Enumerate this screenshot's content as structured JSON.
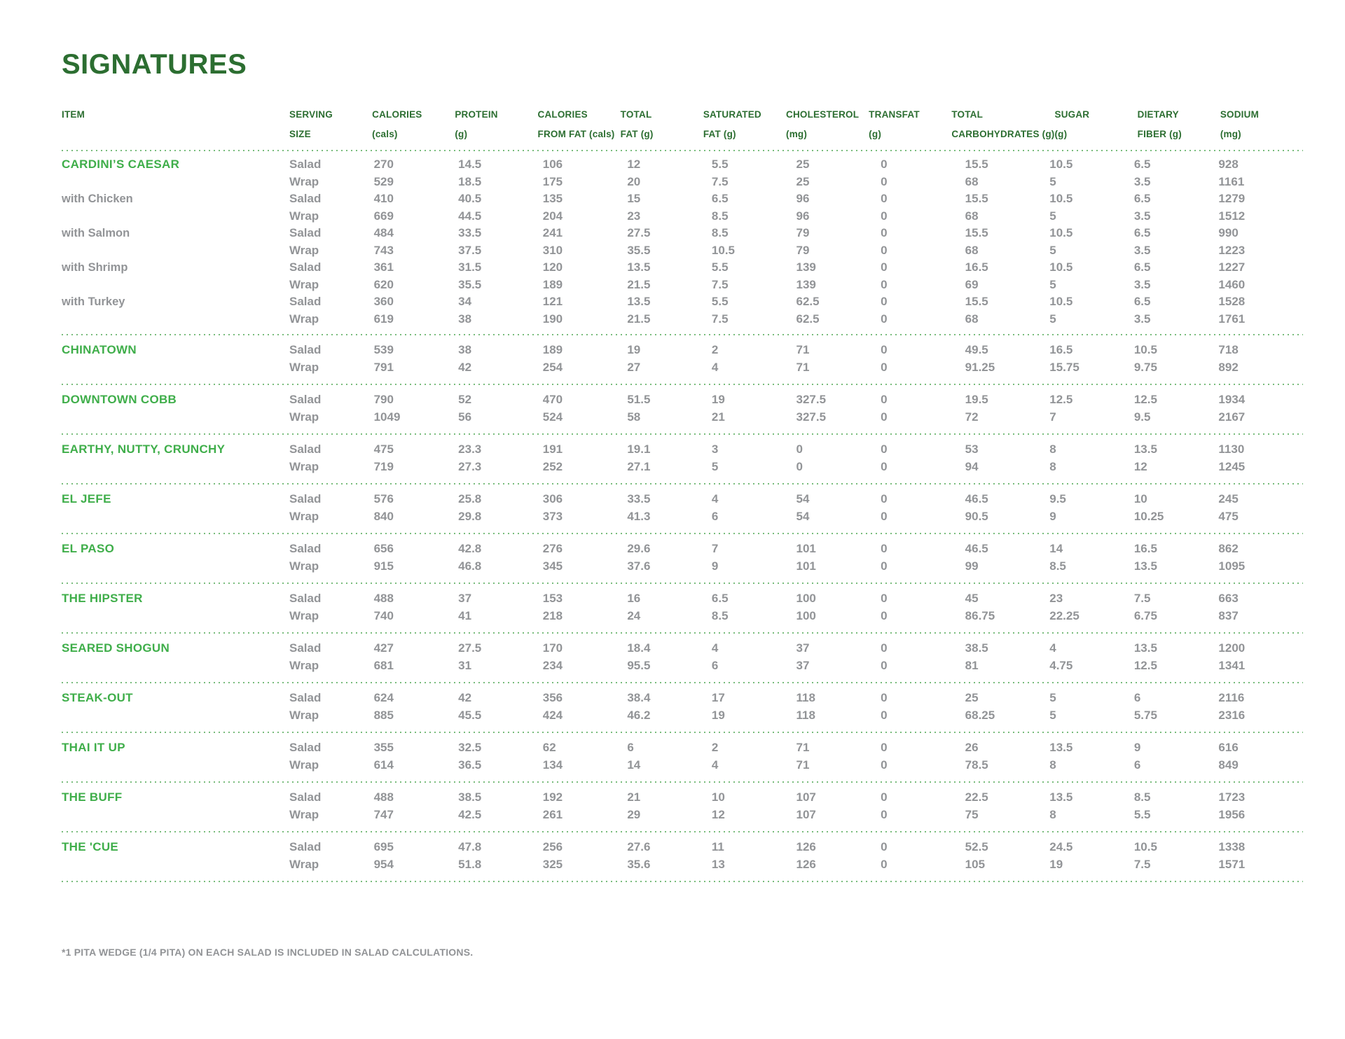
{
  "title": "SIGNATURES",
  "footnote": "*1 PITA WEDGE (1/4 PITA) ON EACH SALAD IS INCLUDED IN SALAD CALCULATIONS.",
  "colors": {
    "title_green": "#2c6e31",
    "item_green": "#3fae4a",
    "data_gray": "#929497",
    "divider_green": "#79bc7c"
  },
  "table": {
    "item_header": "ITEM",
    "columns": [
      {
        "id": "serving-size",
        "line1": "SERVING",
        "line2": "SIZE"
      },
      {
        "id": "calories",
        "line1": "CALORIES",
        "line2": "(cals)"
      },
      {
        "id": "protein",
        "line1": "PROTEIN",
        "line2": "(g)"
      },
      {
        "id": "calories-from-fat",
        "line1": "CALORIES",
        "line2": "FROM FAT (cals)"
      },
      {
        "id": "total-fat",
        "line1": "TOTAL",
        "line2": "FAT (g)"
      },
      {
        "id": "saturated-fat",
        "line1": "SATURATED",
        "line2": "FAT (g)"
      },
      {
        "id": "cholesterol",
        "line1": "CHOLESTEROL",
        "line2": "(mg)"
      },
      {
        "id": "transfat",
        "line1": "TRANSFAT",
        "line2": "(g)"
      },
      {
        "id": "total-carbohydrates",
        "line1": "TOTAL",
        "line2": "CARBOHYDRATES (g)"
      },
      {
        "id": "sugar",
        "line1": "SUGAR",
        "line2": "(g)"
      },
      {
        "id": "dietary-fiber",
        "line1": "DIETARY",
        "line2": "FIBER (g)"
      },
      {
        "id": "sodium",
        "line1": "SODIUM",
        "line2": "(mg)"
      }
    ],
    "sections": [
      {
        "name": "CARDINI’S CAESAR",
        "groups": [
          {
            "label": "",
            "rows": [
              {
                "serving": "Salad",
                "values": [
                  "270",
                  "14.5",
                  "106",
                  "12",
                  "5.5",
                  "25",
                  "0",
                  "15.5",
                  "10.5",
                  "6.5",
                  "928"
                ]
              },
              {
                "serving": "Wrap",
                "values": [
                  "529",
                  "18.5",
                  "175",
                  "20",
                  "7.5",
                  "25",
                  "0",
                  "68",
                  "5",
                  "3.5",
                  "1161"
                ]
              }
            ]
          },
          {
            "label": "with Chicken",
            "rows": [
              {
                "serving": "Salad",
                "values": [
                  "410",
                  "40.5",
                  "135",
                  "15",
                  "6.5",
                  "96",
                  "0",
                  "15.5",
                  "10.5",
                  "6.5",
                  "1279"
                ]
              },
              {
                "serving": "Wrap",
                "values": [
                  "669",
                  "44.5",
                  "204",
                  "23",
                  "8.5",
                  "96",
                  "0",
                  "68",
                  "5",
                  "3.5",
                  "1512"
                ]
              }
            ]
          },
          {
            "label": "with Salmon",
            "rows": [
              {
                "serving": "Salad",
                "values": [
                  "484",
                  "33.5",
                  "241",
                  "27.5",
                  "8.5",
                  "79",
                  "0",
                  "15.5",
                  "10.5",
                  "6.5",
                  "990"
                ]
              },
              {
                "serving": "Wrap",
                "values": [
                  "743",
                  "37.5",
                  "310",
                  "35.5",
                  "10.5",
                  "79",
                  "0",
                  "68",
                  "5",
                  "3.5",
                  "1223"
                ]
              }
            ]
          },
          {
            "label": "with Shrimp",
            "rows": [
              {
                "serving": "Salad",
                "values": [
                  "361",
                  "31.5",
                  "120",
                  "13.5",
                  "5.5",
                  "139",
                  "0",
                  "16.5",
                  "10.5",
                  "6.5",
                  "1227"
                ]
              },
              {
                "serving": "Wrap",
                "values": [
                  "620",
                  "35.5",
                  "189",
                  "21.5",
                  "7.5",
                  "139",
                  "0",
                  "69",
                  "5",
                  "3.5",
                  "1460"
                ]
              }
            ]
          },
          {
            "label": "with Turkey",
            "rows": [
              {
                "serving": "Salad",
                "values": [
                  "360",
                  "34",
                  "121",
                  "13.5",
                  "5.5",
                  "62.5",
                  "0",
                  "15.5",
                  "10.5",
                  "6.5",
                  "1528"
                ]
              },
              {
                "serving": "Wrap",
                "values": [
                  "619",
                  "38",
                  "190",
                  "21.5",
                  "7.5",
                  "62.5",
                  "0",
                  "68",
                  "5",
                  "3.5",
                  "1761"
                ]
              }
            ]
          }
        ]
      },
      {
        "name": "CHINATOWN",
        "groups": [
          {
            "label": "",
            "rows": [
              {
                "serving": "Salad",
                "values": [
                  "539",
                  "38",
                  "189",
                  "19",
                  "2",
                  "71",
                  "0",
                  "49.5",
                  "16.5",
                  "10.5",
                  "718"
                ]
              },
              {
                "serving": "Wrap",
                "values": [
                  "791",
                  "42",
                  "254",
                  "27",
                  "4",
                  "71",
                  "0",
                  "91.25",
                  "15.75",
                  "9.75",
                  "892"
                ]
              }
            ]
          }
        ]
      },
      {
        "name": "DOWNTOWN COBB",
        "groups": [
          {
            "label": "",
            "rows": [
              {
                "serving": "Salad",
                "values": [
                  "790",
                  "52",
                  "470",
                  "51.5",
                  "19",
                  "327.5",
                  "0",
                  "19.5",
                  "12.5",
                  "12.5",
                  "1934"
                ]
              },
              {
                "serving": "Wrap",
                "values": [
                  "1049",
                  "56",
                  "524",
                  "58",
                  "21",
                  "327.5",
                  "0",
                  "72",
                  "7",
                  "9.5",
                  "2167"
                ]
              }
            ]
          }
        ]
      },
      {
        "name": "EARTHY, NUTTY, CRUNCHY",
        "groups": [
          {
            "label": "",
            "rows": [
              {
                "serving": "Salad",
                "values": [
                  "475",
                  "23.3",
                  "191",
                  "19.1",
                  "3",
                  "0",
                  "0",
                  "53",
                  "8",
                  "13.5",
                  "1130"
                ]
              },
              {
                "serving": "Wrap",
                "values": [
                  "719",
                  "27.3",
                  "252",
                  "27.1",
                  "5",
                  "0",
                  "0",
                  "94",
                  "8",
                  "12",
                  "1245"
                ]
              }
            ]
          }
        ]
      },
      {
        "name": "EL JEFE",
        "groups": [
          {
            "label": "",
            "rows": [
              {
                "serving": "Salad",
                "values": [
                  "576",
                  "25.8",
                  "306",
                  "33.5",
                  "4",
                  "54",
                  "0",
                  "46.5",
                  "9.5",
                  "10",
                  "245"
                ]
              },
              {
                "serving": "Wrap",
                "values": [
                  "840",
                  "29.8",
                  "373",
                  "41.3",
                  "6",
                  "54",
                  "0",
                  "90.5",
                  "9",
                  "10.25",
                  "475"
                ]
              }
            ]
          }
        ]
      },
      {
        "name": "EL PASO",
        "groups": [
          {
            "label": "",
            "rows": [
              {
                "serving": "Salad",
                "values": [
                  "656",
                  "42.8",
                  "276",
                  "29.6",
                  "7",
                  "101",
                  "0",
                  "46.5",
                  "14",
                  "16.5",
                  "862"
                ]
              },
              {
                "serving": "Wrap",
                "values": [
                  "915",
                  "46.8",
                  "345",
                  "37.6",
                  "9",
                  "101",
                  "0",
                  "99",
                  "8.5",
                  "13.5",
                  "1095"
                ]
              }
            ]
          }
        ]
      },
      {
        "name": "THE HIPSTER",
        "groups": [
          {
            "label": "",
            "rows": [
              {
                "serving": "Salad",
                "values": [
                  "488",
                  "37",
                  "153",
                  "16",
                  "6.5",
                  "100",
                  "0",
                  "45",
                  "23",
                  "7.5",
                  "663"
                ]
              },
              {
                "serving": "Wrap",
                "values": [
                  "740",
                  "41",
                  "218",
                  "24",
                  "8.5",
                  "100",
                  "0",
                  "86.75",
                  "22.25",
                  "6.75",
                  "837"
                ]
              }
            ]
          }
        ]
      },
      {
        "name": "SEARED SHOGUN",
        "groups": [
          {
            "label": "",
            "rows": [
              {
                "serving": "Salad",
                "values": [
                  "427",
                  "27.5",
                  "170",
                  "18.4",
                  "4",
                  "37",
                  "0",
                  "38.5",
                  "4",
                  "13.5",
                  "1200"
                ]
              },
              {
                "serving": "Wrap",
                "values": [
                  "681",
                  "31",
                  "234",
                  "95.5",
                  "6",
                  "37",
                  "0",
                  "81",
                  "4.75",
                  "12.5",
                  "1341"
                ]
              }
            ]
          }
        ]
      },
      {
        "name": "STEAK-OUT",
        "groups": [
          {
            "label": "",
            "rows": [
              {
                "serving": "Salad",
                "values": [
                  "624",
                  "42",
                  "356",
                  "38.4",
                  "17",
                  "118",
                  "0",
                  "25",
                  "5",
                  "6",
                  "2116"
                ]
              },
              {
                "serving": "Wrap",
                "values": [
                  "885",
                  "45.5",
                  "424",
                  "46.2",
                  "19",
                  "118",
                  "0",
                  "68.25",
                  "5",
                  "5.75",
                  "2316"
                ]
              }
            ]
          }
        ]
      },
      {
        "name": "THAI IT UP",
        "groups": [
          {
            "label": "",
            "rows": [
              {
                "serving": "Salad",
                "values": [
                  "355",
                  "32.5",
                  "62",
                  "6",
                  "2",
                  "71",
                  "0",
                  "26",
                  "13.5",
                  "9",
                  "616"
                ]
              },
              {
                "serving": "Wrap",
                "values": [
                  "614",
                  "36.5",
                  "134",
                  "14",
                  "4",
                  "71",
                  "0",
                  "78.5",
                  "8",
                  "6",
                  "849"
                ]
              }
            ]
          }
        ]
      },
      {
        "name": "THE BUFF",
        "groups": [
          {
            "label": "",
            "rows": [
              {
                "serving": "Salad",
                "values": [
                  "488",
                  "38.5",
                  "192",
                  "21",
                  "10",
                  "107",
                  "0",
                  "22.5",
                  "13.5",
                  "8.5",
                  "1723"
                ]
              },
              {
                "serving": "Wrap",
                "values": [
                  "747",
                  "42.5",
                  "261",
                  "29",
                  "12",
                  "107",
                  "0",
                  "75",
                  "8",
                  "5.5",
                  "1956"
                ]
              }
            ]
          }
        ]
      },
      {
        "name": "THE 'CUE",
        "groups": [
          {
            "label": "",
            "rows": [
              {
                "serving": "Salad",
                "values": [
                  "695",
                  "47.8",
                  "256",
                  "27.6",
                  "11",
                  "126",
                  "0",
                  "52.5",
                  "24.5",
                  "10.5",
                  "1338"
                ]
              },
              {
                "serving": "Wrap",
                "values": [
                  "954",
                  "51.8",
                  "325",
                  "35.6",
                  "13",
                  "126",
                  "0",
                  "105",
                  "19",
                  "7.5",
                  "1571"
                ]
              }
            ]
          }
        ]
      }
    ]
  }
}
